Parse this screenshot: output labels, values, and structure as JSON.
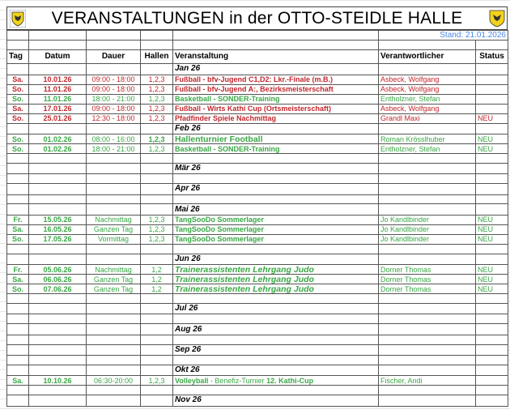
{
  "title": "VERANSTALTUNGEN in der OTTO-STEIDLE HALLE",
  "stand": "Stand: 21.01.2026",
  "colors": {
    "red": "#c1272d",
    "green": "#3aa845",
    "stand": "#4a86e8"
  },
  "headers": [
    "Tag",
    "Datum",
    "Dauer",
    "Hallen",
    "Veranstaltung",
    "Verantwortlicher",
    "Status"
  ],
  "rows": [
    {
      "type": "month",
      "label": "Jan 26"
    },
    {
      "type": "event",
      "color": "red",
      "tag": "Sa.",
      "datum": "10.01.26",
      "dauer": "09:00 - 18:00",
      "hallen": "1,2,3",
      "veranstaltung": "Fußball - bfv-Jugend C1,D2: Lkr.-Finale (m.B.)",
      "verantwortlicher": "Asbeck, Wolfgang",
      "status": ""
    },
    {
      "type": "event",
      "color": "red",
      "tag": "So.",
      "datum": "11.01.26",
      "dauer": "09:00 - 18:00",
      "hallen": "1,2,3",
      "veranstaltung": "Fußball - bfv-Jugend A:, Bezirksmeisterschaft",
      "verantwortlicher": "Asbeck, Wolfgang",
      "status": ""
    },
    {
      "type": "event",
      "color": "green",
      "tag": "So.",
      "datum": "11.01.26",
      "dauer": "18:00 - 21:00",
      "hallen": "1,2,3",
      "veranstaltung": "Basketball - SONDER-Training",
      "verantwortlicher": "Entholzner, Stefan",
      "status": ""
    },
    {
      "type": "event",
      "color": "red",
      "tag": "Sa.",
      "datum": "17.01.26",
      "dauer": "09:00 - 18:00",
      "hallen": "1,2,3",
      "veranstaltung": "Fußball - Wirts Kathi Cup (Ortsmeisterschaft)",
      "verantwortlicher": "Asbeck, Wolfgang",
      "status": ""
    },
    {
      "type": "event",
      "color": "red",
      "tag": "So.",
      "datum": "25.01.26",
      "dauer": "12:30 - 18:00",
      "hallen": "1,2,3",
      "veranstaltung": "Pfadfinder Spiele Nachmittag",
      "verantwortlicher": "Grandl Maxi",
      "status": "NEU"
    },
    {
      "type": "month",
      "label": "Feb 26"
    },
    {
      "type": "event",
      "color": "green",
      "style": "big",
      "boldHallen": true,
      "tag": "So.",
      "datum": "01.02.26",
      "dauer": "08:00 - 16:00",
      "hallen": "1,2,3",
      "veranstaltung": "Hallenturnier Football",
      "verantwortlicher": "Roman Krösslhuber",
      "status": "NEU"
    },
    {
      "type": "event",
      "color": "green",
      "tag": "So.",
      "datum": "01.02.26",
      "dauer": "18:00 - 21:00",
      "hallen": "1,2,3",
      "veranstaltung": "Basketball - SONDER-Training",
      "verantwortlicher": "Entholzner, Stefan",
      "status": "NEU"
    },
    {
      "type": "blank"
    },
    {
      "type": "month",
      "label": "Mär 26"
    },
    {
      "type": "blank"
    },
    {
      "type": "month",
      "label": "Apr 26"
    },
    {
      "type": "blank"
    },
    {
      "type": "month",
      "label": "Mai 26"
    },
    {
      "type": "event",
      "color": "green",
      "tag": "Fr.",
      "datum": "15.05.26",
      "dauer": "Nachmittag",
      "hallen": "1,2,3",
      "veranstaltung": "TangSooDo Sommerlager",
      "verantwortlicher": "Jo Kandlbinder",
      "status": "NEU"
    },
    {
      "type": "event",
      "color": "green",
      "tag": "Sa.",
      "datum": "16.05.26",
      "dauer": "Ganzen Tag",
      "hallen": "1,2,3",
      "veranstaltung": "TangSooDo Sommerlager",
      "verantwortlicher": "Jo Kandlbinder",
      "status": "NEU"
    },
    {
      "type": "event",
      "color": "green",
      "tag": "So.",
      "datum": "17.05.26",
      "dauer": "Vormittag",
      "hallen": "1,2,3",
      "veranstaltung": "TangSooDo Sommerlager",
      "verantwortlicher": "Jo Kandlbinder",
      "status": "NEU"
    },
    {
      "type": "blank"
    },
    {
      "type": "month",
      "label": "Jun 26"
    },
    {
      "type": "event",
      "color": "green",
      "style": "it",
      "tag": "Fr.",
      "datum": "05.06.26",
      "dauer": "Nachmittag",
      "hallen": "1,2",
      "veranstaltung": "Trainerassistenten Lehrgang Judo",
      "verantwortlicher": "Dorner Thomas",
      "status": "NEU"
    },
    {
      "type": "event",
      "color": "green",
      "style": "it",
      "tag": "Sa.",
      "datum": "06.06.26",
      "dauer": "Ganzen Tag",
      "hallen": "1,2",
      "veranstaltung": "Trainerassistenten Lehrgang Judo",
      "verantwortlicher": "Dorner Thomas",
      "status": "NEU"
    },
    {
      "type": "event",
      "color": "green",
      "style": "it",
      "tag": "So.",
      "datum": "07.06.26",
      "dauer": "Ganzen Tag",
      "hallen": "1,2",
      "veranstaltung": "Trainerassistenten Lehrgang Judo",
      "verantwortlicher": "Dorner Thomas",
      "status": "NEU"
    },
    {
      "type": "blank"
    },
    {
      "type": "month",
      "label": "Jul 26"
    },
    {
      "type": "blank"
    },
    {
      "type": "month",
      "label": "Aug 26"
    },
    {
      "type": "blank"
    },
    {
      "type": "month",
      "label": "Sep 26"
    },
    {
      "type": "blank"
    },
    {
      "type": "month",
      "label": "Okt 26"
    },
    {
      "type": "event",
      "color": "green",
      "tag": "Sa.",
      "datum": "10.10.26",
      "dauer": "06:30-20:00",
      "hallen": "1,2,3",
      "parts": [
        {
          "text": "Volleyball",
          "bold": true
        },
        {
          "text": " - Benefiz-Turnier ",
          "bold": false
        },
        {
          "text": "12. Kathi-Cup",
          "bold": true
        }
      ],
      "verantwortlicher": "Fischer, Andi",
      "status": ""
    },
    {
      "type": "blank"
    },
    {
      "type": "month",
      "label": "Nov 26"
    }
  ]
}
